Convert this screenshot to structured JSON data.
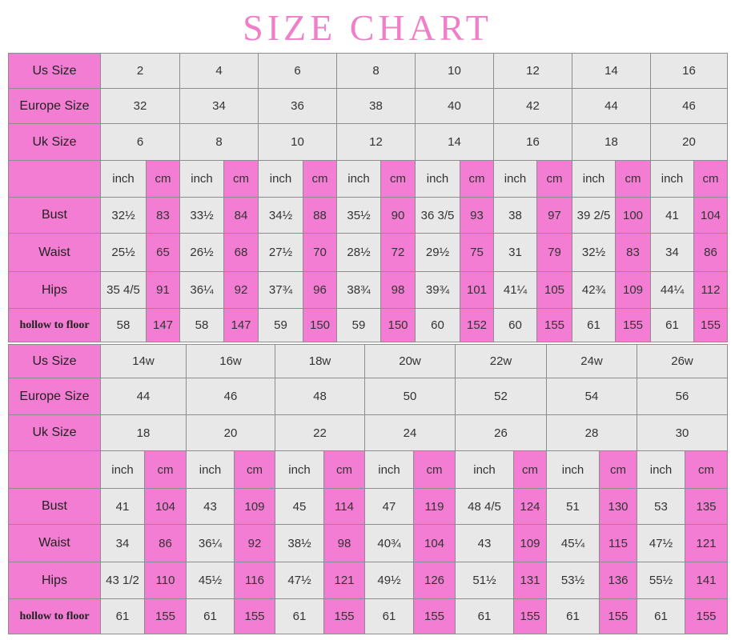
{
  "title": "SIZE CHART",
  "tables": [
    {
      "row_labels": [
        "Us Size",
        "Europe Size",
        "Uk Size",
        "Bust",
        "Waist",
        "Hips",
        "hollow to floor"
      ],
      "unit_labels": [
        "inch",
        "cm"
      ],
      "us_size": [
        "2",
        "4",
        "6",
        "8",
        "10",
        "12",
        "14",
        "16"
      ],
      "europe_size": [
        "32",
        "34",
        "36",
        "38",
        "40",
        "42",
        "44",
        "46"
      ],
      "uk_size": [
        "6",
        "8",
        "10",
        "12",
        "14",
        "16",
        "18",
        "20"
      ],
      "bust": [
        [
          "32½",
          "83"
        ],
        [
          "33½",
          "84"
        ],
        [
          "34½",
          "88"
        ],
        [
          "35½",
          "90"
        ],
        [
          "36 3/5",
          "93"
        ],
        [
          "38",
          "97"
        ],
        [
          "39 2/5",
          "100"
        ],
        [
          "41",
          "104"
        ]
      ],
      "waist": [
        [
          "25½",
          "65"
        ],
        [
          "26½",
          "68"
        ],
        [
          "27½",
          "70"
        ],
        [
          "28½",
          "72"
        ],
        [
          "29½",
          "75"
        ],
        [
          "31",
          "79"
        ],
        [
          "32½",
          "83"
        ],
        [
          "34",
          "86"
        ]
      ],
      "hips": [
        [
          "35 4/5",
          "91"
        ],
        [
          "36¼",
          "92"
        ],
        [
          "37¾",
          "96"
        ],
        [
          "38¾",
          "98"
        ],
        [
          "39¾",
          "101"
        ],
        [
          "41¼",
          "105"
        ],
        [
          "42¾",
          "109"
        ],
        [
          "44¼",
          "112"
        ]
      ],
      "hollow_to_floor": [
        [
          "58",
          "147"
        ],
        [
          "58",
          "147"
        ],
        [
          "59",
          "150"
        ],
        [
          "59",
          "150"
        ],
        [
          "60",
          "152"
        ],
        [
          "60",
          "155"
        ],
        [
          "61",
          "155"
        ],
        [
          "61",
          "155"
        ]
      ]
    },
    {
      "row_labels": [
        "Us Size",
        "Europe Size",
        "Uk Size",
        "Bust",
        "Waist",
        "Hips",
        "hollow to floor"
      ],
      "unit_labels": [
        "inch",
        "cm"
      ],
      "us_size": [
        "14w",
        "16w",
        "18w",
        "20w",
        "22w",
        "24w",
        "26w"
      ],
      "europe_size": [
        "44",
        "46",
        "48",
        "50",
        "52",
        "54",
        "56"
      ],
      "uk_size": [
        "18",
        "20",
        "22",
        "24",
        "26",
        "28",
        "30"
      ],
      "bust": [
        [
          "41",
          "104"
        ],
        [
          "43",
          "109"
        ],
        [
          "45",
          "114"
        ],
        [
          "47",
          "119"
        ],
        [
          "48 4/5",
          "124"
        ],
        [
          "51",
          "130"
        ],
        [
          "53",
          "135"
        ]
      ],
      "waist": [
        [
          "34",
          "86"
        ],
        [
          "36¼",
          "92"
        ],
        [
          "38½",
          "98"
        ],
        [
          "40¾",
          "104"
        ],
        [
          "43",
          "109"
        ],
        [
          "45¼",
          "115"
        ],
        [
          "47½",
          "121"
        ]
      ],
      "hips": [
        [
          "43 1/2",
          "110"
        ],
        [
          "45½",
          "116"
        ],
        [
          "47½",
          "121"
        ],
        [
          "49½",
          "126"
        ],
        [
          "51½",
          "131"
        ],
        [
          "53½",
          "136"
        ],
        [
          "55½",
          "141"
        ]
      ],
      "hollow_to_floor": [
        [
          "61",
          "155"
        ],
        [
          "61",
          "155"
        ],
        [
          "61",
          "155"
        ],
        [
          "61",
          "155"
        ],
        [
          "61",
          "155"
        ],
        [
          "61",
          "155"
        ],
        [
          "61",
          "155"
        ]
      ]
    }
  ]
}
